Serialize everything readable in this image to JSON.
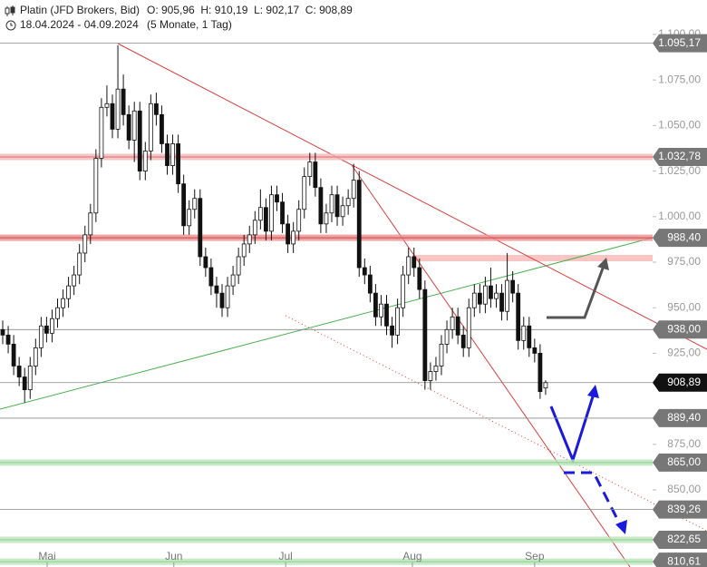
{
  "chart_data": {
    "type": "candlestick",
    "title": "Platin (JFD Brokers, Bid)",
    "quote": "O: 905,96  H: 910,19  L: 902,17  C: 908,89",
    "period": "18.04.2024 - 04.09.2024",
    "period_note": "(5 Monate, 1 Tag)",
    "open": [
      938,
      935,
      930,
      918,
      912,
      905,
      918,
      928,
      940,
      936,
      944,
      950,
      955,
      962,
      968,
      980,
      990,
      1002,
      1032,
      1060,
      1062,
      1048,
      1070,
      1056,
      1042,
      1058,
      1025,
      1036,
      1062,
      1056,
      1040,
      1028,
      1040,
      1018,
      995,
      1004,
      1010,
      978,
      972,
      962,
      958,
      950,
      962,
      968,
      978,
      985,
      990,
      998,
      1005,
      992,
      1012,
      1008,
      996,
      985,
      992,
      1004,
      1022,
      1030,
      1016,
      996,
      1002,
      1012,
      1000,
      1006,
      1010,
      1020,
      972,
      968,
      958,
      945,
      952,
      940,
      935,
      950,
      968,
      978,
      972,
      960,
      910,
      915,
      918,
      930,
      938,
      945,
      935,
      928,
      950,
      958,
      952,
      962,
      955,
      958,
      948,
      965,
      958,
      932,
      940,
      928,
      925,
      905.96
    ],
    "high": [
      943,
      940,
      935,
      923,
      917,
      923,
      933,
      945,
      945,
      949,
      955,
      960,
      967,
      973,
      985,
      995,
      1007,
      1037,
      1065,
      1072,
      1067,
      1094,
      1078,
      1061,
      1063,
      1063,
      1041,
      1067,
      1068,
      1061,
      1045,
      1045,
      1045,
      1023,
      1009,
      1015,
      1015,
      983,
      977,
      967,
      963,
      967,
      973,
      983,
      990,
      995,
      1003,
      1015,
      1010,
      1017,
      1017,
      1013,
      1001,
      997,
      1009,
      1027,
      1035,
      1035,
      1021,
      1007,
      1017,
      1017,
      1011,
      1015,
      1029,
      1025,
      977,
      973,
      963,
      957,
      957,
      945,
      955,
      973,
      983,
      983,
      977,
      965,
      920,
      923,
      935,
      943,
      950,
      950,
      940,
      955,
      963,
      963,
      967,
      972,
      963,
      963,
      980,
      970,
      963,
      945,
      945,
      933,
      930,
      910.19
    ],
    "low": [
      930,
      925,
      913,
      907,
      898,
      900,
      913,
      923,
      931,
      931,
      939,
      945,
      950,
      957,
      963,
      975,
      985,
      997,
      1027,
      1055,
      1043,
      1043,
      1050,
      1037,
      1030,
      1020,
      1020,
      1031,
      1050,
      1035,
      1023,
      1023,
      1013,
      990,
      990,
      999,
      973,
      967,
      957,
      950,
      945,
      945,
      957,
      963,
      973,
      980,
      985,
      993,
      987,
      987,
      1003,
      991,
      980,
      980,
      987,
      999,
      1017,
      1011,
      991,
      991,
      997,
      995,
      995,
      1001,
      1005,
      967,
      963,
      953,
      940,
      940,
      935,
      928,
      930,
      945,
      963,
      967,
      955,
      905,
      905,
      910,
      913,
      925,
      933,
      930,
      923,
      923,
      945,
      947,
      947,
      950,
      950,
      943,
      943,
      953,
      927,
      927,
      923,
      920,
      900,
      902.17
    ],
    "close": [
      935,
      930,
      918,
      912,
      905,
      918,
      928,
      940,
      936,
      944,
      950,
      955,
      962,
      968,
      980,
      990,
      1002,
      1032,
      1060,
      1062,
      1048,
      1070,
      1056,
      1042,
      1058,
      1025,
      1036,
      1062,
      1056,
      1040,
      1028,
      1040,
      1018,
      995,
      1004,
      1010,
      978,
      972,
      962,
      958,
      950,
      962,
      968,
      978,
      985,
      990,
      998,
      1005,
      992,
      1012,
      1008,
      996,
      985,
      992,
      1004,
      1022,
      1030,
      1016,
      996,
      1002,
      1012,
      1000,
      1006,
      1010,
      1020,
      972,
      968,
      958,
      945,
      952,
      940,
      935,
      950,
      968,
      978,
      972,
      960,
      910,
      915,
      918,
      930,
      938,
      945,
      935,
      928,
      950,
      958,
      952,
      962,
      955,
      958,
      948,
      965,
      958,
      932,
      940,
      928,
      925,
      904,
      908.89
    ],
    "up_color": "#ffffff",
    "down_color": "#111111",
    "ylim": [
      807.7,
      1118.9
    ],
    "yticks": [
      {
        "value": 1100,
        "label": "1.100,00"
      },
      {
        "value": 1075,
        "label": "1.075,00"
      },
      {
        "value": 1050,
        "label": "1.050,00"
      },
      {
        "value": 1025,
        "label": "1.025,00"
      },
      {
        "value": 1000,
        "label": "1.000,00"
      },
      {
        "value": 975,
        "label": "975,00"
      },
      {
        "value": 950,
        "label": "950,00"
      },
      {
        "value": 925,
        "label": "925,00"
      },
      {
        "value": 875,
        "label": "875,00"
      },
      {
        "value": 850,
        "label": "850,00"
      }
    ],
    "xticks": [
      {
        "value": 8.1,
        "label": "Mai"
      },
      {
        "value": 31.2,
        "label": "Jun"
      },
      {
        "value": 51.6,
        "label": "Jul"
      },
      {
        "value": 74.7,
        "label": "Aug"
      },
      {
        "value": 97,
        "label": "Sep"
      }
    ],
    "levels": [
      {
        "value": 1095.17,
        "label": "1.095,17",
        "color": "#888888",
        "style": "line",
        "label_color": "#777777"
      },
      {
        "value": 1032.78,
        "label": "1.032,78",
        "color": "#f4b6b6",
        "style": "band",
        "label_color": "#777777"
      },
      {
        "value": 988.4,
        "label": "988,40",
        "color": "#e89090",
        "style": "band",
        "label_color": "#777777"
      },
      {
        "value": 938.0,
        "label": "938,00",
        "color": "#888888",
        "style": "line",
        "label_color": "#777777"
      },
      {
        "value": 908.89,
        "label": "908,89",
        "color": "#888888",
        "style": "line",
        "label_color": "#111111"
      },
      {
        "value": 889.4,
        "label": "889,40",
        "color": "#888888",
        "style": "line",
        "label_color": "#777777"
      },
      {
        "value": 865.0,
        "label": "865,00",
        "color": "#b9e3b9",
        "style": "band",
        "label_color": "#777777"
      },
      {
        "value": 839.26,
        "label": "839,26",
        "color": "#888888",
        "style": "line",
        "label_color": "#777777"
      },
      {
        "value": 822.65,
        "label": "822,65",
        "color": "#b9e3b9",
        "style": "band",
        "label_color": "#777777"
      },
      {
        "value": 810.61,
        "label": "810,61",
        "color": "#b9e3b9",
        "style": "band",
        "label_color": "#777777"
      }
    ]
  }
}
